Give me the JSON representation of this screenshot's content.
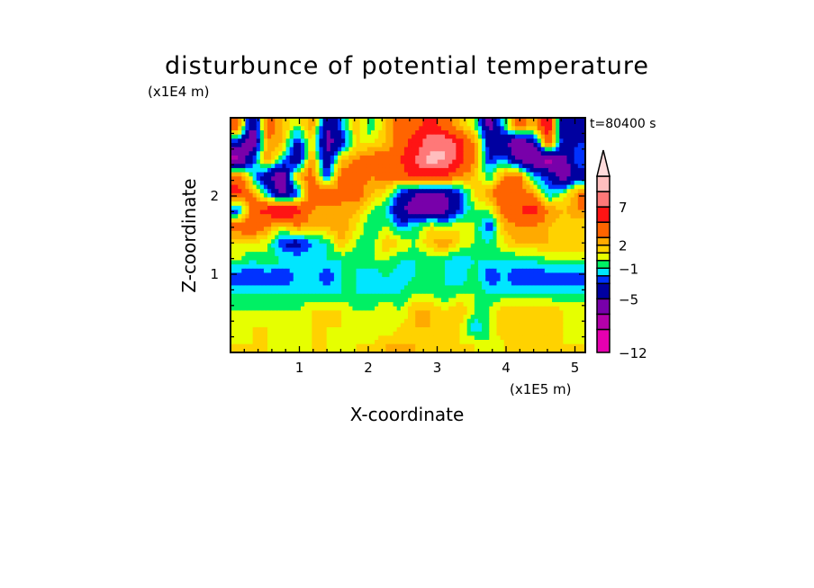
{
  "chart_data": {
    "type": "heatmap",
    "title": "disturbunce of potential temperature",
    "xlabel": "X-coordinate",
    "ylabel": "Z-coordinate",
    "x_unit": "(x1E5 m)",
    "y_unit": "(x1E4 m)",
    "annotation": "t=80400 s",
    "xlim": [
      0,
      5.15
    ],
    "ylim": [
      0,
      3.0
    ],
    "xticks": [
      "1",
      "2",
      "3",
      "4",
      "5"
    ],
    "xtick_values": [
      1,
      2,
      3,
      4,
      5
    ],
    "yticks": [
      "1",
      "2"
    ],
    "ytick_values": [
      1,
      2
    ],
    "colorbar": {
      "levels": [
        -12,
        -9,
        -7,
        -5,
        -3,
        -2,
        -1,
        0,
        1,
        2,
        3,
        5,
        7,
        9,
        11
      ],
      "extend": "max",
      "colors": [
        "#e600b0",
        "#b400aa",
        "#7800aa",
        "#0000a0",
        "#0032ff",
        "#00e6ff",
        "#00f064",
        "#e6ff00",
        "#ffd200",
        "#ffaa00",
        "#ff6400",
        "#ff1414",
        "#ff7878",
        "#ffbebe"
      ],
      "over_color": "#ffdcdc",
      "labels": [
        "7",
        "2",
        "−1",
        "−5",
        "−12"
      ],
      "label_values": [
        7,
        2,
        -1,
        -5,
        -12
      ]
    },
    "grid_rows_top_to_bottom": [
      [
        4,
        -6,
        4,
        2,
        0,
        3,
        -5,
        -2,
        2,
        -1,
        2,
        4,
        4,
        6,
        4,
        2,
        0,
        -6,
        -1,
        4,
        2,
        7,
        -5,
        -5
      ],
      [
        -4,
        -7,
        3,
        2,
        -4,
        1,
        -6,
        -4,
        1,
        1,
        2,
        4,
        6,
        8,
        9,
        6,
        3,
        -4,
        -5,
        -7,
        -5,
        5,
        -4,
        -3
      ],
      [
        -8,
        -3,
        3,
        -1,
        -5,
        3,
        -5,
        2,
        3,
        4,
        4,
        5,
        7,
        10,
        9,
        6,
        3,
        -3,
        -2,
        -6,
        -7,
        -8,
        -6,
        -2
      ],
      [
        4,
        -1,
        -5,
        -7,
        2,
        4,
        -3,
        4,
        4,
        3,
        4,
        4,
        6,
        5,
        5,
        3,
        2,
        -1,
        3,
        4,
        -2,
        -3,
        -7,
        -4
      ],
      [
        6,
        3,
        -2,
        -6,
        -3,
        5,
        5,
        3,
        4,
        2,
        1,
        -3,
        -5,
        -5,
        -5,
        -3,
        1,
        3,
        5,
        4,
        3,
        -2,
        0,
        3
      ],
      [
        -3,
        4,
        6,
        8,
        6,
        3,
        2,
        3,
        2,
        0,
        -1,
        -5,
        -6,
        -6,
        -6,
        -3,
        0,
        0,
        4,
        5,
        6,
        3,
        2,
        3
      ],
      [
        4,
        5,
        3,
        1,
        3,
        2,
        2,
        3,
        1,
        -1,
        0,
        -2,
        -1,
        1,
        0,
        1,
        0,
        -3,
        2,
        3,
        3,
        2,
        1,
        1
      ],
      [
        1,
        1,
        0,
        -3,
        -4,
        -2,
        -1,
        2,
        0,
        -1,
        2,
        1,
        0,
        2,
        3,
        1,
        0,
        -1,
        1,
        2,
        2,
        2,
        2,
        2
      ],
      [
        0,
        -1,
        0,
        -1,
        -1,
        -1,
        -1,
        -1,
        -1,
        0,
        0,
        -1,
        -1,
        -1,
        -1,
        -2,
        -1,
        -1,
        -1,
        -1,
        -1,
        0,
        0,
        0
      ],
      [
        -3,
        -3,
        -3,
        -3,
        -2,
        -1,
        -3,
        -1,
        -1,
        -2,
        -1,
        -2,
        -1,
        -1,
        -1,
        -2,
        0,
        -3,
        -2,
        -3,
        -3,
        -3,
        -3,
        -3
      ],
      [
        -1,
        -1,
        -1,
        -1,
        -1,
        -1,
        -1,
        -1,
        -1,
        -1,
        -1,
        -1,
        0,
        0,
        -1,
        0,
        0,
        -1,
        -1,
        -1,
        -1,
        -1,
        -1,
        -1
      ],
      [
        0,
        0,
        0,
        0,
        0,
        1,
        1,
        1,
        0,
        0,
        1,
        0,
        2,
        2,
        1,
        2,
        0,
        0,
        2,
        2,
        2,
        2,
        1,
        1
      ],
      [
        0,
        1,
        1,
        1,
        0,
        1,
        1,
        1,
        1,
        0,
        0,
        1,
        2,
        2,
        2,
        1,
        -2,
        0,
        2,
        1,
        1,
        1,
        1,
        0
      ],
      [
        1,
        1,
        1,
        0,
        0,
        1,
        1,
        0,
        1,
        1,
        2,
        2,
        2,
        1,
        1,
        1,
        1,
        0,
        1,
        1,
        1,
        1,
        1,
        1
      ]
    ]
  }
}
